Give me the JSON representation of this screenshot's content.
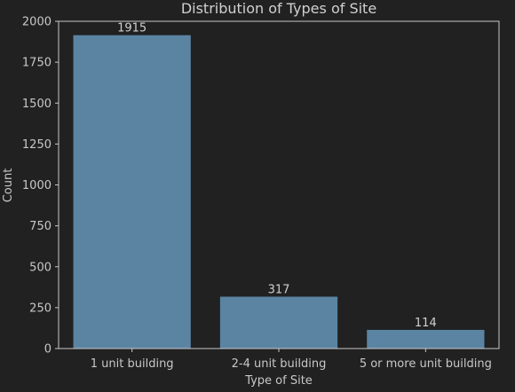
{
  "chart_data": {
    "type": "bar",
    "title": "Distribution of Types of Site",
    "xlabel": "Type of Site",
    "ylabel": "Count",
    "categories": [
      "1 unit building",
      "2-4 unit building",
      "5 or more unit building"
    ],
    "values": [
      1915,
      317,
      114
    ],
    "data_labels": [
      "1915",
      "317",
      "114"
    ],
    "ylim": [
      0,
      2000
    ],
    "yticks": [
      0,
      250,
      500,
      750,
      1000,
      1250,
      1500,
      1750,
      2000
    ],
    "ytick_labels": [
      "0",
      "250",
      "500",
      "750",
      "1000",
      "1250",
      "1500",
      "1750",
      "2000"
    ],
    "grid": false,
    "colors": {
      "bar": "#5b84a3",
      "background": "#212121",
      "spine": "#c8c8c8",
      "text": "#c8c8c8"
    }
  }
}
